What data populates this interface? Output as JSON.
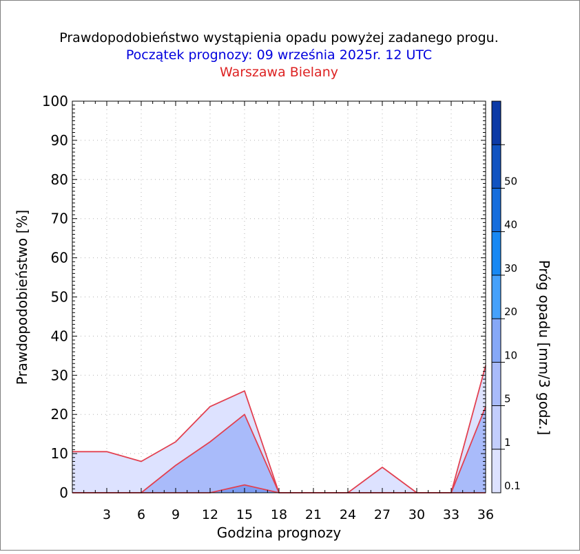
{
  "chart_data": {
    "type": "area",
    "title": "Prawdopodobieństwo wystąpienia opadu powyżej zadanego progu.",
    "subtitle": "Początek prognozy: 09 września 2025r. 12 UTC",
    "location": "Warszawa Bielany",
    "xlabel": "Godzina prognozy",
    "ylabel": "Prawdopodobieństwo [%]",
    "colorbar_label": "Próg opadu [mm/3 godz.]",
    "xlim": [
      0,
      36
    ],
    "ylim": [
      0,
      100
    ],
    "x_ticks": [
      3,
      6,
      9,
      12,
      15,
      18,
      21,
      24,
      27,
      30,
      33,
      36
    ],
    "y_ticks": [
      0,
      10,
      20,
      30,
      40,
      50,
      60,
      70,
      80,
      90,
      100
    ],
    "x_tick_labels": [
      "3",
      "6",
      "9",
      "12",
      "15",
      "18",
      "21",
      "24",
      "27",
      "30",
      "33",
      "36"
    ],
    "y_tick_labels": [
      "0",
      "10",
      "20",
      "30",
      "40",
      "50",
      "60",
      "70",
      "80",
      "90",
      "100"
    ],
    "grid": true,
    "x": [
      0,
      3,
      6,
      9,
      12,
      15,
      18,
      21,
      24,
      27,
      30,
      33,
      36
    ],
    "series": [
      {
        "threshold": "0.1",
        "values": [
          10.5,
          10.5,
          8,
          13,
          22,
          26,
          0,
          0,
          0,
          6.5,
          0,
          0,
          32.5
        ],
        "fill": "#dde2ff"
      },
      {
        "threshold": "1",
        "values": [
          0,
          0,
          0,
          7,
          13,
          20,
          0,
          0,
          0,
          0,
          0,
          0,
          22
        ],
        "fill": "#a9bbfa"
      },
      {
        "threshold": "5",
        "values": [
          0,
          0,
          0,
          0,
          0,
          2,
          0,
          0,
          0,
          0,
          0,
          0,
          0
        ],
        "fill": "#7c9cf2"
      }
    ],
    "colorbar": {
      "levels": [
        {
          "label": "0.1",
          "color": "#dde2ff"
        },
        {
          "label": "1",
          "color": "#c3cefd"
        },
        {
          "label": "5",
          "color": "#a9bbfa"
        },
        {
          "label": "10",
          "color": "#86a8f7"
        },
        {
          "label": "20",
          "color": "#46a1fb"
        },
        {
          "label": "30",
          "color": "#1788f3"
        },
        {
          "label": "40",
          "color": "#156ddd"
        },
        {
          "label": "50",
          "color": "#1153c1"
        },
        {
          "label": "",
          "color": "#0c3aa6"
        }
      ]
    },
    "line_color": "#e24050"
  }
}
